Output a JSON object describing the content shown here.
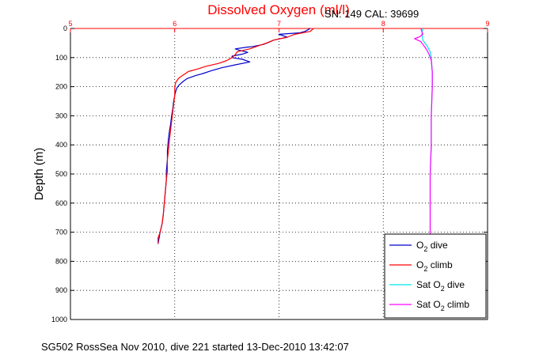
{
  "chart_data": {
    "type": "line",
    "title": "Dissolved Oxygen (ml/l)",
    "subtitle": "SN: 149  CAL: 39699",
    "xlabel": "",
    "ylabel": "Depth (m)",
    "xlim": [
      5,
      9
    ],
    "ylim": [
      0,
      1000
    ],
    "y_reversed": true,
    "x_ticks": [
      "5",
      "6",
      "7",
      "8",
      "9"
    ],
    "y_ticks": [
      "0",
      "100",
      "200",
      "300",
      "400",
      "500",
      "600",
      "700",
      "800",
      "900",
      "1000"
    ],
    "grid": true,
    "legend_position": "bottom-right",
    "colors": {
      "title": "#ff0000",
      "top_axis": "#ff0000",
      "o2_dive": "#0000cc",
      "o2_climb": "#ff0000",
      "sat_dive": "#00e5ee",
      "sat_climb": "#ff00ff"
    },
    "series": [
      {
        "name": "O2 dive",
        "color": "#0000cc",
        "points": [
          [
            7.3,
            0
          ],
          [
            7.25,
            10
          ],
          [
            7.2,
            15
          ],
          [
            7.0,
            20
          ],
          [
            7.08,
            30
          ],
          [
            6.95,
            40
          ],
          [
            6.9,
            48
          ],
          [
            6.85,
            55
          ],
          [
            6.75,
            62
          ],
          [
            6.68,
            65
          ],
          [
            6.58,
            70
          ],
          [
            6.62,
            75
          ],
          [
            6.7,
            82
          ],
          [
            6.65,
            88
          ],
          [
            6.55,
            95
          ],
          [
            6.55,
            100
          ],
          [
            6.65,
            106
          ],
          [
            6.72,
            115
          ],
          [
            6.58,
            125
          ],
          [
            6.45,
            135
          ],
          [
            6.35,
            145
          ],
          [
            6.27,
            155
          ],
          [
            6.2,
            162
          ],
          [
            6.12,
            172
          ],
          [
            6.08,
            182
          ],
          [
            6.04,
            195
          ],
          [
            6.02,
            205
          ],
          [
            6.01,
            215
          ],
          [
            6.0,
            230
          ],
          [
            5.99,
            250
          ],
          [
            5.98,
            280
          ],
          [
            5.97,
            300
          ],
          [
            5.96,
            330
          ],
          [
            5.95,
            350
          ],
          [
            5.94,
            380
          ],
          [
            5.93,
            420
          ],
          [
            5.93,
            450
          ],
          [
            5.92,
            490
          ],
          [
            5.92,
            520
          ],
          [
            5.91,
            560
          ],
          [
            5.9,
            600
          ],
          [
            5.89,
            640
          ],
          [
            5.88,
            670
          ],
          [
            5.86,
            700
          ],
          [
            5.85,
            720
          ],
          [
            5.84,
            740
          ]
        ]
      },
      {
        "name": "O2 climb",
        "color": "#ff0000",
        "points": [
          [
            5.84,
            740
          ],
          [
            5.84,
            720
          ],
          [
            5.86,
            700
          ],
          [
            5.88,
            670
          ],
          [
            5.89,
            640
          ],
          [
            5.9,
            600
          ],
          [
            5.91,
            560
          ],
          [
            5.92,
            520
          ],
          [
            5.93,
            490
          ],
          [
            5.93,
            450
          ],
          [
            5.94,
            420
          ],
          [
            5.95,
            380
          ],
          [
            5.96,
            350
          ],
          [
            5.97,
            320
          ],
          [
            5.98,
            290
          ],
          [
            5.99,
            260
          ],
          [
            6.0,
            230
          ],
          [
            6.0,
            200
          ],
          [
            6.01,
            185
          ],
          [
            6.04,
            170
          ],
          [
            6.09,
            158
          ],
          [
            6.13,
            148
          ],
          [
            6.23,
            138
          ],
          [
            6.3,
            130
          ],
          [
            6.42,
            120
          ],
          [
            6.5,
            110
          ],
          [
            6.55,
            100
          ],
          [
            6.58,
            90
          ],
          [
            6.6,
            80
          ],
          [
            6.72,
            70
          ],
          [
            6.8,
            60
          ],
          [
            6.88,
            50
          ],
          [
            6.95,
            40
          ],
          [
            7.08,
            30
          ],
          [
            7.15,
            20
          ],
          [
            7.3,
            10
          ],
          [
            7.33,
            0
          ]
        ]
      },
      {
        "name": "Sat O2 dive",
        "color": "#00e5ee",
        "points": [
          [
            8.38,
            0
          ],
          [
            8.37,
            20
          ],
          [
            8.38,
            40
          ],
          [
            8.42,
            60
          ],
          [
            8.45,
            80
          ],
          [
            8.46,
            100
          ],
          [
            8.47,
            150
          ],
          [
            8.47,
            200
          ],
          [
            8.46,
            300
          ],
          [
            8.46,
            400
          ],
          [
            8.45,
            500
          ],
          [
            8.45,
            600
          ],
          [
            8.45,
            700
          ],
          [
            8.45,
            740
          ]
        ]
      },
      {
        "name": "Sat O2 climb",
        "color": "#ff00ff",
        "points": [
          [
            8.45,
            740
          ],
          [
            8.45,
            700
          ],
          [
            8.45,
            600
          ],
          [
            8.45,
            500
          ],
          [
            8.46,
            400
          ],
          [
            8.46,
            300
          ],
          [
            8.47,
            200
          ],
          [
            8.47,
            150
          ],
          [
            8.46,
            110
          ],
          [
            8.44,
            90
          ],
          [
            8.42,
            75
          ],
          [
            8.4,
            65
          ],
          [
            8.38,
            55
          ],
          [
            8.36,
            45
          ],
          [
            8.3,
            35
          ],
          [
            8.35,
            28
          ],
          [
            8.38,
            20
          ],
          [
            8.37,
            10
          ],
          [
            8.36,
            0
          ]
        ]
      }
    ],
    "legend": [
      {
        "series": "O2 dive",
        "prefix": "O",
        "subscript": "2",
        "suffix": " dive",
        "color": "#0000cc"
      },
      {
        "series": "O2 climb",
        "prefix": "O",
        "subscript": "2",
        "suffix": " climb",
        "color": "#ff0000"
      },
      {
        "series": "Sat O2 dive",
        "prefix": "Sat O",
        "subscript": "2",
        "suffix": " dive",
        "color": "#00e5ee"
      },
      {
        "series": "Sat O2 climb",
        "prefix": "Sat O",
        "subscript": "2",
        "suffix": " climb",
        "color": "#ff00ff"
      }
    ]
  },
  "footer": "SG502 RossSea Nov 2010, dive 221 started 13-Dec-2010 13:42:07"
}
